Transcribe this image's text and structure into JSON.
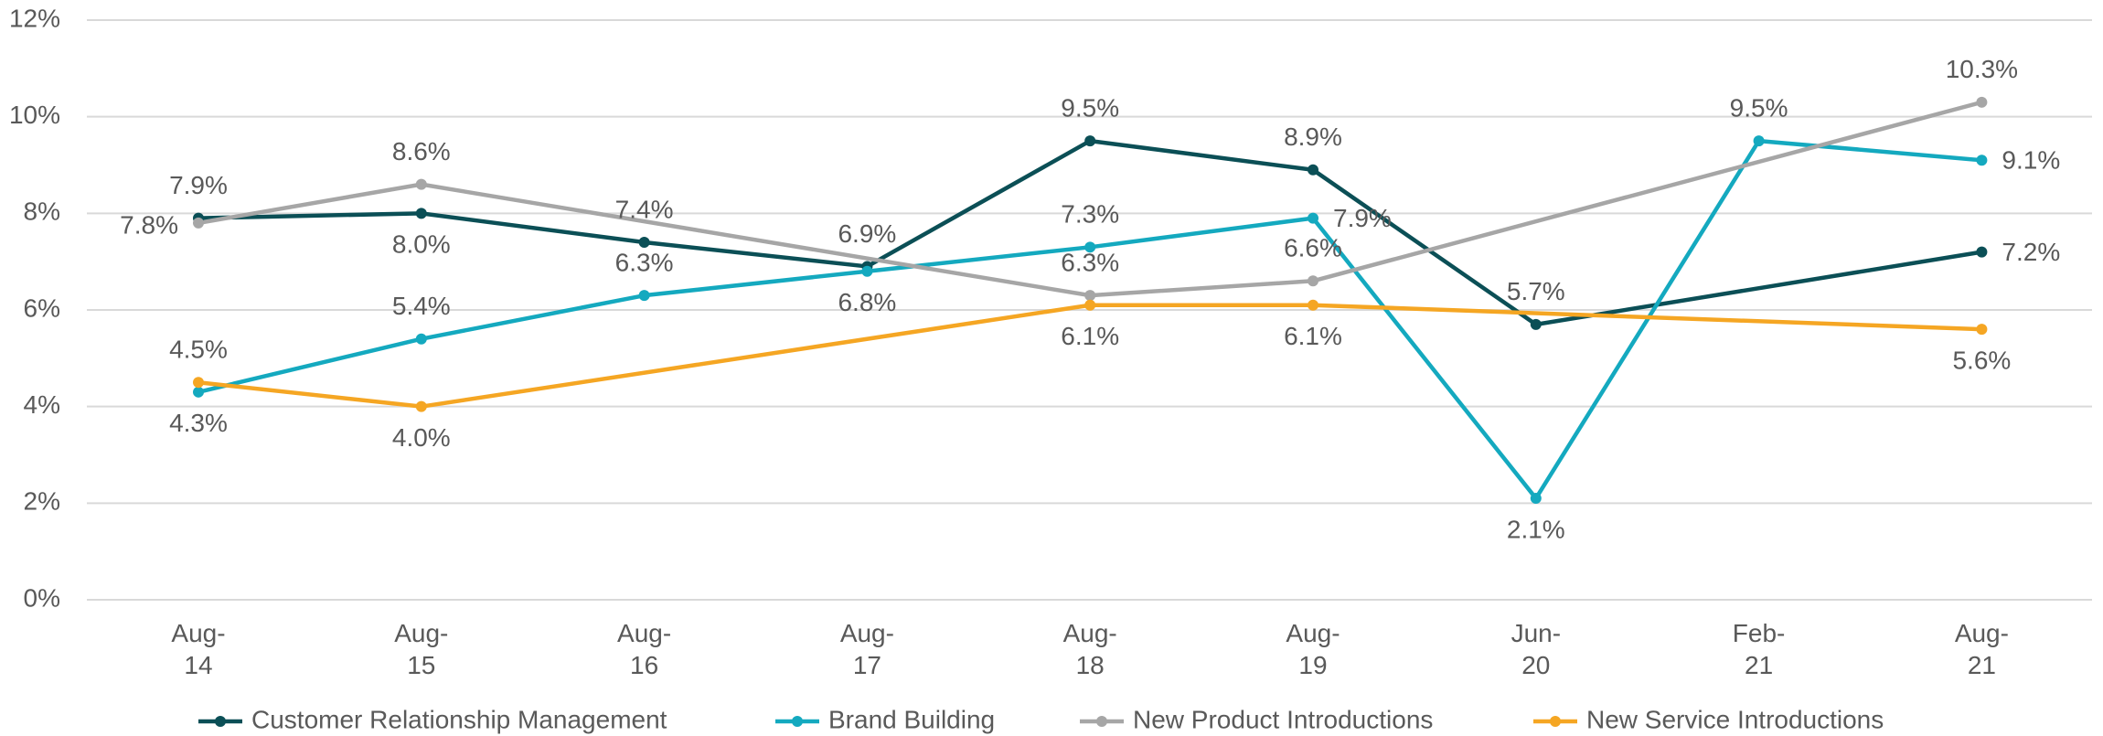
{
  "chart_data": {
    "type": "line",
    "categories": [
      "Aug-14",
      "Aug-15",
      "Aug-16",
      "Aug-17",
      "Aug-18",
      "Aug-19",
      "Jun-20",
      "Feb-21",
      "Aug-21"
    ],
    "ylim": [
      0,
      12
    ],
    "yticks": [
      {
        "value": 0,
        "label": "0%"
      },
      {
        "value": 2,
        "label": "2%"
      },
      {
        "value": 4,
        "label": "4%"
      },
      {
        "value": 6,
        "label": "6%"
      },
      {
        "value": 8,
        "label": "8%"
      },
      {
        "value": 10,
        "label": "10%"
      },
      {
        "value": 12,
        "label": "12%"
      }
    ],
    "grid": true,
    "connect_gaps": true,
    "legend": "bottom",
    "series": [
      {
        "name": "Customer Relationship Management",
        "color": "#0b4f56",
        "values": [
          7.9,
          8.0,
          7.4,
          6.9,
          9.5,
          8.9,
          5.7,
          null,
          7.2
        ],
        "value_labels": [
          "7.9%",
          "8.0%",
          "7.4%",
          "6.9%",
          "9.5%",
          "8.9%",
          "5.7%",
          null,
          "7.2%"
        ]
      },
      {
        "name": "Brand Building",
        "color": "#14a9bf",
        "values": [
          4.3,
          5.4,
          6.3,
          6.8,
          7.3,
          7.9,
          2.1,
          9.5,
          9.1
        ],
        "value_labels": [
          "4.3%",
          "5.4%",
          "6.3%",
          "6.8%",
          "7.3%",
          "7.9%",
          "2.1%",
          "9.5%",
          "9.1%"
        ]
      },
      {
        "name": "New Product Introductions",
        "color": "#a6a6a6",
        "values": [
          7.8,
          8.6,
          null,
          null,
          6.3,
          6.6,
          null,
          null,
          10.3
        ],
        "value_labels": [
          "7.8%",
          "8.6%",
          null,
          null,
          "6.3%",
          "6.6%",
          null,
          null,
          "10.3%"
        ]
      },
      {
        "name": "New Service Introductions",
        "color": "#f5a623",
        "values": [
          4.5,
          4.0,
          null,
          null,
          6.1,
          6.1,
          null,
          null,
          5.6
        ],
        "value_labels": [
          "4.5%",
          "4.0%",
          null,
          null,
          "6.1%",
          "6.1%",
          null,
          null,
          "5.6%"
        ]
      }
    ]
  }
}
